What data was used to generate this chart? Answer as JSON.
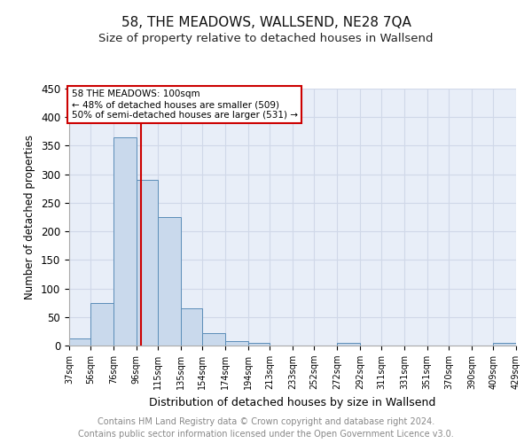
{
  "title": "58, THE MEADOWS, WALLSEND, NE28 7QA",
  "subtitle": "Size of property relative to detached houses in Wallsend",
  "xlabel": "Distribution of detached houses by size in Wallsend",
  "ylabel": "Number of detached properties",
  "annotation_title": "58 THE MEADOWS: 100sqm",
  "annotation_line1": "← 48% of detached houses are smaller (509)",
  "annotation_line2": "50% of semi-detached houses are larger (531) →",
  "footer_line1": "Contains HM Land Registry data © Crown copyright and database right 2024.",
  "footer_line2": "Contains public sector information licensed under the Open Government Licence v3.0.",
  "bin_edges": [
    37,
    56,
    76,
    96,
    115,
    135,
    154,
    174,
    194,
    213,
    233,
    252,
    272,
    292,
    311,
    331,
    351,
    370,
    390,
    409,
    429
  ],
  "bar_heights": [
    13,
    75,
    365,
    290,
    225,
    65,
    22,
    8,
    5,
    0,
    0,
    0,
    5,
    0,
    0,
    0,
    0,
    0,
    0,
    5
  ],
  "bar_color": "#c9d9ec",
  "bar_edge_color": "#5b8db8",
  "tick_labels": [
    "37sqm",
    "56sqm",
    "76sqm",
    "96sqm",
    "115sqm",
    "135sqm",
    "154sqm",
    "174sqm",
    "194sqm",
    "213sqm",
    "233sqm",
    "252sqm",
    "272sqm",
    "292sqm",
    "311sqm",
    "331sqm",
    "351sqm",
    "370sqm",
    "390sqm",
    "409sqm",
    "429sqm"
  ],
  "vline_x": 100,
  "vline_color": "#cc0000",
  "ylim": [
    0,
    450
  ],
  "yticks": [
    0,
    50,
    100,
    150,
    200,
    250,
    300,
    350,
    400,
    450
  ],
  "grid_color": "#d0d8e8",
  "background_color": "#e8eef8",
  "annotation_box_color": "#ffffff",
  "annotation_box_edge": "#cc0000",
  "title_fontsize": 11,
  "subtitle_fontsize": 9.5,
  "xlabel_fontsize": 9,
  "ylabel_fontsize": 8.5,
  "footer_color": "#888888",
  "footer_fontsize": 7
}
